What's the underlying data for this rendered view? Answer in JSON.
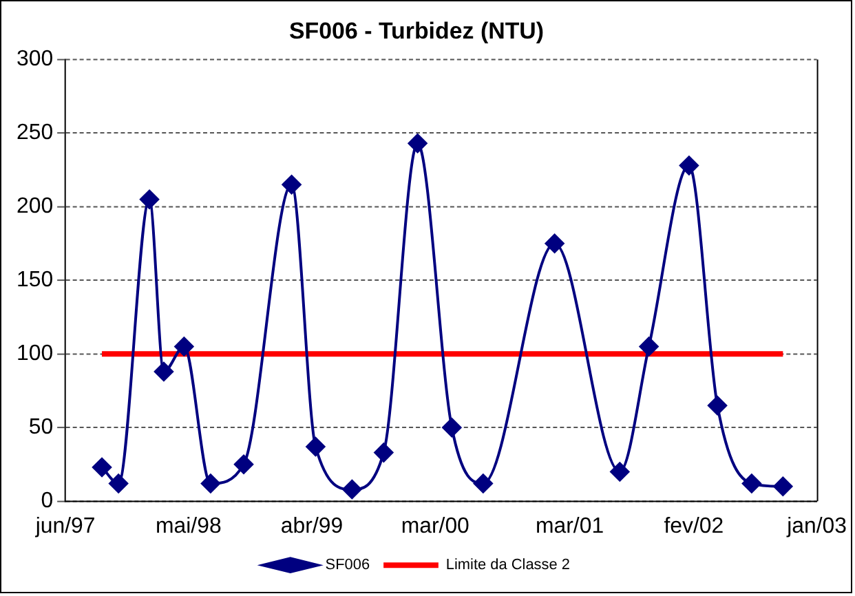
{
  "chart_data": {
    "type": "line",
    "title": "SF006 - Turbidez (NTU)",
    "series": [
      {
        "name": "SF006",
        "color": "#000080",
        "marker": "diamond",
        "x": [
          "1997-09-08",
          "1997-10-23",
          "1998-01-15",
          "1998-02-23",
          "1998-04-19",
          "1998-06-30",
          "1998-09-28",
          "1999-02-05",
          "1999-04-11",
          "1999-07-19",
          "1999-10-13",
          "2000-01-13",
          "2000-04-15",
          "2000-07-09",
          "2001-01-19",
          "2001-07-15",
          "2001-10-02",
          "2002-01-19",
          "2002-04-06",
          "2002-07-08",
          "2002-10-01"
        ],
        "values": [
          23,
          12,
          205,
          88,
          105,
          12,
          25,
          215,
          37,
          8,
          33,
          243,
          50,
          12,
          175,
          20,
          105,
          228,
          65,
          12,
          10
        ]
      },
      {
        "name": "Limite da Classe 2",
        "color": "#ff0000",
        "marker": "none",
        "x": [
          "1997-09-08",
          "2002-10-01"
        ],
        "values": [
          100,
          100
        ]
      }
    ],
    "xlim": [
      "1997-06-01",
      "2003-01-01"
    ],
    "xticks": [
      {
        "value": "1997-06-01",
        "label": "jun/97"
      },
      {
        "value": "1998-05-01",
        "label": "mai/98"
      },
      {
        "value": "1999-04-01",
        "label": "abr/99"
      },
      {
        "value": "2000-03-01",
        "label": "mar/00"
      },
      {
        "value": "2001-03-01",
        "label": "mar/01"
      },
      {
        "value": "2002-02-01",
        "label": "fev/02"
      },
      {
        "value": "2003-01-01",
        "label": "jan/03"
      }
    ],
    "ylim": [
      0,
      300
    ],
    "yticks": [
      0,
      50,
      100,
      150,
      200,
      250,
      300
    ],
    "grid": "y",
    "legend": "bottom",
    "line_style": "solid"
  }
}
